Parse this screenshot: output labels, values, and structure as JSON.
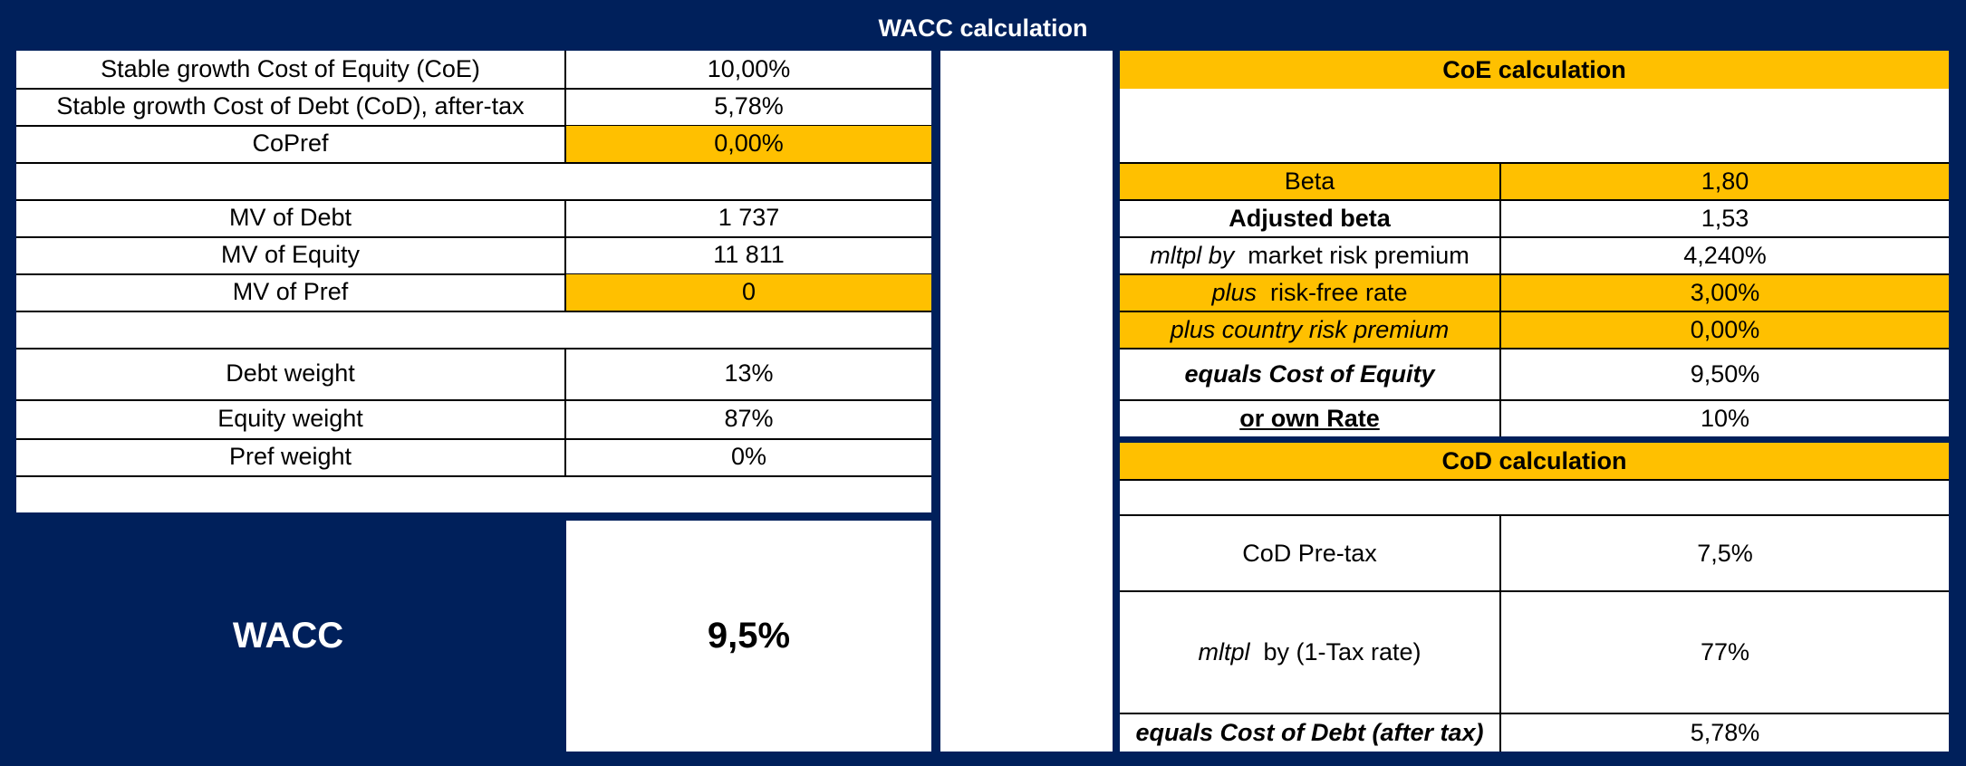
{
  "title": "WACC calculation",
  "left_table": [
    {
      "label": "Stable growth Cost of Equity (CoE)",
      "value": "10,00%"
    },
    {
      "label": "Stable growth Cost of Debt (CoD), after-tax",
      "value": "5,78%"
    },
    {
      "label": "CoPref",
      "value": "0,00%"
    },
    {
      "label": "MV of Debt",
      "value": "1 737"
    },
    {
      "label": "MV of Equity",
      "value": "11 811"
    },
    {
      "label": "MV of Pref",
      "value": "0"
    },
    {
      "label": "Debt weight",
      "value": "13%"
    },
    {
      "label": "Equity weight",
      "value": "87%"
    },
    {
      "label": "Pref weight",
      "value": "0%"
    }
  ],
  "wacc": {
    "label": "WACC",
    "value": "9,5%"
  },
  "coe": {
    "header": "CoE calculation",
    "beta": {
      "label": "Beta",
      "value": "1,80"
    },
    "adjusted_beta": {
      "label": "Adjusted beta",
      "value": "1,53"
    },
    "mrp": {
      "prefix": "mltpl by",
      "label": "market risk premium",
      "value": "4,240%"
    },
    "rfr": {
      "prefix": "plus",
      "label": "risk-free rate",
      "value": "3,00%"
    },
    "crp": {
      "label": "plus country risk premium",
      "value": "0,00%"
    },
    "result": {
      "label": "equals Cost of Equity",
      "value": "9,50%"
    },
    "own_rate": {
      "label": "or own Rate",
      "value": "10%"
    }
  },
  "cod": {
    "header": "CoD calculation",
    "pretax": {
      "label": "CoD Pre-tax",
      "value": "7,5%"
    },
    "tax": {
      "prefix": "mltpl",
      "label": "by (1-Tax rate)",
      "value": "77%"
    },
    "result": {
      "label": "equals Cost of Debt (after tax)",
      "value": "5,78%"
    }
  },
  "colors": {
    "navy": "#00205b",
    "gold": "#ffc000",
    "white": "#ffffff"
  }
}
